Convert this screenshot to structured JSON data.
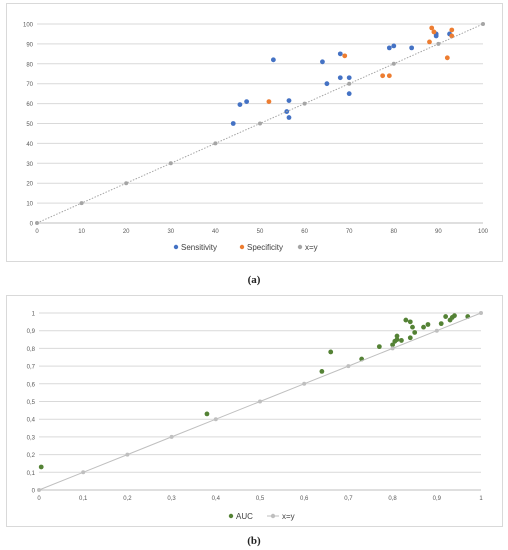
{
  "captions": [
    "(a)",
    "(b)"
  ],
  "chart_data": [
    {
      "type": "scatter",
      "title": "",
      "xlabel": "",
      "ylabel": "",
      "xlim": [
        0,
        100
      ],
      "ylim": [
        0,
        100
      ],
      "xticks": [
        "0",
        "10",
        "20",
        "30",
        "40",
        "50",
        "60",
        "70",
        "80",
        "90",
        "100"
      ],
      "yticks": [
        "0",
        "10",
        "20",
        "30",
        "40",
        "50",
        "60",
        "70",
        "80",
        "90",
        "100"
      ],
      "grid": "horizontal",
      "legend_position": "bottom",
      "series": [
        {
          "name": "Sensitivity",
          "color": "#4472C4",
          "points": [
            [
              44,
              50
            ],
            [
              45.5,
              59.5
            ],
            [
              47,
              61
            ],
            [
              53,
              82
            ],
            [
              56,
              56
            ],
            [
              56.5,
              53
            ],
            [
              56.5,
              61.5
            ],
            [
              64,
              81
            ],
            [
              65,
              70
            ],
            [
              68,
              73
            ],
            [
              68,
              85
            ],
            [
              70,
              73
            ],
            [
              70,
              65
            ],
            [
              79,
              88
            ],
            [
              80,
              89
            ],
            [
              84,
              88
            ],
            [
              89.5,
              94
            ],
            [
              89.5,
              95
            ],
            [
              92.5,
              95
            ]
          ]
        },
        {
          "name": "Specificity",
          "color": "#ED7D31",
          "points": [
            [
              52,
              61
            ],
            [
              69,
              84
            ],
            [
              77.5,
              74
            ],
            [
              79,
              74
            ],
            [
              88,
              91
            ],
            [
              88.5,
              98
            ],
            [
              89,
              96
            ],
            [
              92,
              83
            ],
            [
              93,
              97
            ],
            [
              93,
              94
            ]
          ]
        },
        {
          "name": "x=y",
          "color": "#A5A5A5",
          "line": "dotted",
          "points": [
            [
              0,
              0
            ],
            [
              10,
              10
            ],
            [
              20,
              20
            ],
            [
              30,
              30
            ],
            [
              40,
              40
            ],
            [
              50,
              50
            ],
            [
              60,
              60
            ],
            [
              70,
              70
            ],
            [
              80,
              80
            ],
            [
              90,
              90
            ],
            [
              100,
              100
            ]
          ]
        }
      ]
    },
    {
      "type": "scatter",
      "title": "",
      "xlabel": "",
      "ylabel": "",
      "xlim": [
        0,
        1
      ],
      "ylim": [
        0,
        1
      ],
      "xticks": [
        "0",
        "0,1",
        "0,2",
        "0,3",
        "0,4",
        "0,5",
        "0,6",
        "0,7",
        "0,8",
        "0,9",
        "1"
      ],
      "yticks": [
        "0",
        "0,1",
        "0,2",
        "0,3",
        "0,4",
        "0,5",
        "0,6",
        "0,7",
        "0,8",
        "0,9",
        "1"
      ],
      "grid": "horizontal",
      "legend_position": "bottom",
      "series": [
        {
          "name": "AUC",
          "color": "#548235",
          "points": [
            [
              0.005,
              0.13
            ],
            [
              0.38,
              0.43
            ],
            [
              0.64,
              0.67
            ],
            [
              0.66,
              0.78
            ],
            [
              0.73,
              0.74
            ],
            [
              0.77,
              0.81
            ],
            [
              0.8,
              0.82
            ],
            [
              0.805,
              0.84
            ],
            [
              0.81,
              0.87
            ],
            [
              0.81,
              0.85
            ],
            [
              0.82,
              0.845
            ],
            [
              0.83,
              0.96
            ],
            [
              0.84,
              0.95
            ],
            [
              0.84,
              0.86
            ],
            [
              0.845,
              0.92
            ],
            [
              0.85,
              0.89
            ],
            [
              0.87,
              0.92
            ],
            [
              0.88,
              0.935
            ],
            [
              0.91,
              0.94
            ],
            [
              0.92,
              0.98
            ],
            [
              0.93,
              0.96
            ],
            [
              0.935,
              0.975
            ],
            [
              0.94,
              0.985
            ],
            [
              0.97,
              0.98
            ]
          ]
        },
        {
          "name": "x=y",
          "color": "#BFBFBF",
          "line": "solid",
          "points": [
            [
              0,
              0
            ],
            [
              0.1,
              0.1
            ],
            [
              0.2,
              0.2
            ],
            [
              0.3,
              0.3
            ],
            [
              0.4,
              0.4
            ],
            [
              0.5,
              0.5
            ],
            [
              0.6,
              0.6
            ],
            [
              0.7,
              0.7
            ],
            [
              0.8,
              0.8
            ],
            [
              0.9,
              0.9
            ],
            [
              1,
              1
            ]
          ]
        }
      ]
    }
  ]
}
